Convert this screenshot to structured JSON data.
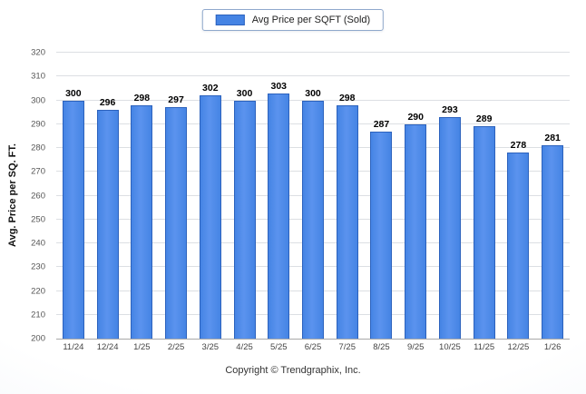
{
  "legend": {
    "label": "Avg Price per SQFT (Sold)"
  },
  "ylabel": "Avg. Price per SQ. FT.",
  "footer": {
    "copyright": "Copyright © Trendgraphix, Inc."
  },
  "colors": {
    "bar": "#4584e4",
    "bar_border": "#2c62bd",
    "grid": "#dcdfe3"
  },
  "chart_data": {
    "type": "bar",
    "title": "",
    "legend": "Avg Price per SQFT (Sold)",
    "legend_position": "top",
    "grid": true,
    "xlabel": "",
    "ylabel": "Avg. Price per SQ. FT.",
    "ylim": [
      200,
      320
    ],
    "ytick_step": 10,
    "categories": [
      "11/24",
      "12/24",
      "1/25",
      "2/25",
      "3/25",
      "4/25",
      "5/25",
      "6/25",
      "7/25",
      "8/25",
      "9/25",
      "10/25",
      "11/25",
      "12/25",
      "1/26"
    ],
    "values": [
      300,
      296,
      298,
      297,
      302,
      300,
      303,
      300,
      298,
      287,
      290,
      293,
      289,
      278,
      281
    ]
  }
}
